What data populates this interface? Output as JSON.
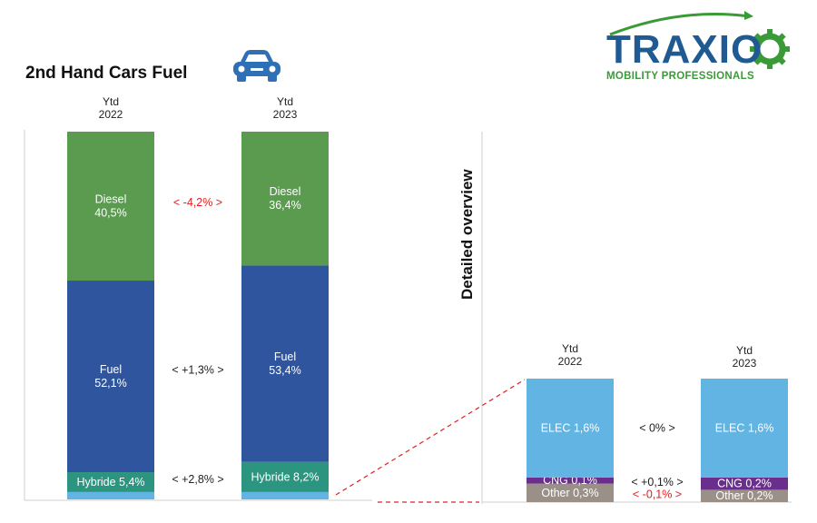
{
  "header": {
    "title": "2nd Hand Cars Fuel",
    "car_icon": "car-icon",
    "logo_text": "TRAXIO",
    "logo_subtitle": "MOBILITY PROFESSIONALS"
  },
  "side_label": "Detailed overview",
  "colors": {
    "diesel": "#5a9b4f",
    "fuel": "#2f559e",
    "hybride": "#2b9580",
    "elec": "#62b4e3",
    "cng": "#6a2f8c",
    "other": "#9a9088",
    "decrease": "#e02020",
    "neutral": "#222222"
  },
  "chart_data": [
    {
      "type": "bar",
      "stacked": true,
      "title": "2nd Hand Cars Fuel",
      "categories": [
        "Ytd\n2022",
        "Ytd\n2023"
      ],
      "series": [
        {
          "name": "Hybride",
          "values": [
            5.4,
            8.2
          ],
          "labels": [
            "Hybride 5,4%",
            "Hybride 8,2%"
          ]
        },
        {
          "name": "Fuel",
          "values": [
            52.1,
            53.4
          ],
          "labels": [
            "Fuel\n52,1%",
            "Fuel\n53,4%"
          ]
        },
        {
          "name": "Diesel",
          "values": [
            40.5,
            36.4
          ],
          "labels": [
            "Diesel\n40,5%",
            "Diesel\n36,4%"
          ]
        }
      ],
      "changes": [
        {
          "series": "Diesel",
          "text": "< -4,2% >",
          "negative": true
        },
        {
          "series": "Fuel",
          "text": "< +1,3% >",
          "negative": false
        },
        {
          "series": "Hybride",
          "text": "< +2,8% >",
          "negative": false
        }
      ],
      "ylim": [
        0,
        100
      ]
    },
    {
      "type": "bar",
      "stacked": true,
      "title": "Detailed overview",
      "categories": [
        "Ytd\n2022",
        "Ytd\n2023"
      ],
      "series": [
        {
          "name": "Other",
          "values": [
            0.3,
            0.2
          ],
          "labels": [
            "Other 0,3%",
            "Other 0,2%"
          ]
        },
        {
          "name": "CNG",
          "values": [
            0.1,
            0.2
          ],
          "labels": [
            "CNG 0,1%",
            "CNG 0,2%"
          ]
        },
        {
          "name": "ELEC",
          "values": [
            1.6,
            1.6
          ],
          "labels": [
            "ELEC 1,6%",
            "ELEC 1,6%"
          ]
        }
      ],
      "changes": [
        {
          "series": "ELEC",
          "text": "< 0% >",
          "negative": false
        },
        {
          "series": "CNG",
          "text": "< +0,1% >",
          "negative": false
        },
        {
          "series": "Other",
          "text": "< -0,1% >",
          "negative": true
        }
      ]
    }
  ]
}
